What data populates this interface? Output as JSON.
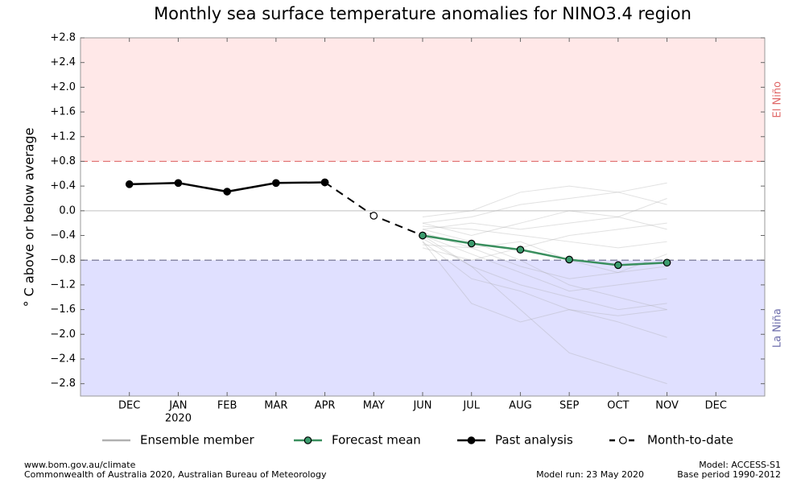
{
  "chart_data": {
    "type": "line",
    "title": "Monthly sea surface temperature anomalies for NINO3.4 region",
    "y_label": "° C above or below average",
    "categories": [
      "DEC",
      "JAN",
      "FEB",
      "MAR",
      "APR",
      "MAY",
      "JUN",
      "JUL",
      "AUG",
      "SEP",
      "OCT",
      "NOV",
      "DEC"
    ],
    "x_year": "2020",
    "ylim": [
      -3.0,
      2.8
    ],
    "yticks": [
      {
        "value": 2.8,
        "label": "+2.8"
      },
      {
        "value": 2.4,
        "label": "+2.4"
      },
      {
        "value": 2.0,
        "label": "+2.0"
      },
      {
        "value": 1.6,
        "label": "+1.6"
      },
      {
        "value": 1.2,
        "label": "+1.2"
      },
      {
        "value": 0.8,
        "label": "+0.8"
      },
      {
        "value": 0.4,
        "label": "+0.4"
      },
      {
        "value": 0,
        "label": "0.0"
      },
      {
        "value": -0.4,
        "label": "−0.4"
      },
      {
        "value": -0.8,
        "label": "−0.8"
      },
      {
        "value": -1.2,
        "label": "−1.2"
      },
      {
        "value": -1.6,
        "label": "−1.6"
      },
      {
        "value": -2.0,
        "label": "−2.0"
      },
      {
        "value": -2.4,
        "label": "−2.4"
      },
      {
        "value": -2.8,
        "label": "−2.8"
      }
    ],
    "zero_line": 0,
    "thresholds": [
      {
        "label": "El Niño",
        "value": 0.8,
        "side": "above",
        "fill": "#ffe8e8",
        "line_color": "#e07070",
        "text_color": "#e06868"
      },
      {
        "label": "La Niña",
        "value": -0.8,
        "side": "below",
        "fill": "#e0e0ff",
        "line_color": "#6a6a8a",
        "text_color": "#6a6aaa"
      }
    ],
    "ensemble": {
      "name": "Ensemble member",
      "color": "#a8a8a8",
      "members": [
        [
          null,
          null,
          null,
          null,
          null,
          null,
          -0.2,
          -0.1,
          0.1,
          0.2,
          0.3,
          0.45,
          null
        ],
        [
          null,
          null,
          null,
          null,
          null,
          null,
          -0.3,
          -0.5,
          -0.8,
          -1.2,
          -1.4,
          -1.6,
          null
        ],
        [
          null,
          null,
          null,
          null,
          null,
          null,
          -0.5,
          -1.5,
          -1.8,
          -1.6,
          -1.7,
          -1.6,
          null
        ],
        [
          null,
          null,
          null,
          null,
          null,
          null,
          -0.4,
          -0.9,
          -1.6,
          -2.3,
          -2.55,
          -2.8,
          null
        ],
        [
          null,
          null,
          null,
          null,
          null,
          null,
          -0.1,
          0.0,
          0.3,
          0.4,
          0.3,
          0.1,
          null
        ],
        [
          null,
          null,
          null,
          null,
          null,
          null,
          -0.35,
          -0.6,
          -0.9,
          -1.1,
          -1.0,
          -0.7,
          null
        ],
        [
          null,
          null,
          null,
          null,
          null,
          null,
          -0.6,
          -0.8,
          -0.6,
          -0.4,
          -0.3,
          -0.2,
          null
        ],
        [
          null,
          null,
          null,
          null,
          null,
          null,
          -0.45,
          -0.9,
          -1.2,
          -1.4,
          -1.6,
          -1.5,
          null
        ],
        [
          null,
          null,
          null,
          null,
          null,
          null,
          -0.25,
          -0.3,
          -0.4,
          -0.5,
          -0.6,
          -0.5,
          null
        ],
        [
          null,
          null,
          null,
          null,
          null,
          null,
          -0.5,
          -1.1,
          -1.3,
          -1.6,
          -1.8,
          -2.05,
          null
        ],
        [
          null,
          null,
          null,
          null,
          null,
          null,
          -0.3,
          -0.2,
          -0.3,
          -0.2,
          -0.1,
          0.2,
          null
        ],
        [
          null,
          null,
          null,
          null,
          null,
          null,
          -0.4,
          -0.7,
          -1.0,
          -1.3,
          -1.2,
          -1.1,
          null
        ],
        [
          null,
          null,
          null,
          null,
          null,
          null,
          -0.55,
          -0.6,
          -0.5,
          -0.8,
          -1.0,
          -0.9,
          null
        ],
        [
          null,
          null,
          null,
          null,
          null,
          null,
          -0.2,
          -0.4,
          -0.2,
          0.0,
          -0.1,
          -0.3,
          null
        ]
      ]
    },
    "series": [
      {
        "name": "Month-to-date",
        "color": "#000000",
        "dashed": true,
        "marker_fill": "#ffffff",
        "values": [
          null,
          null,
          null,
          null,
          0.46,
          -0.08,
          -0.4,
          null,
          null,
          null,
          null,
          null,
          null
        ]
      },
      {
        "name": "Forecast mean",
        "color": "#3a8f5e",
        "dashed": false,
        "marker_fill": "#3c9c6e",
        "values": [
          null,
          null,
          null,
          null,
          null,
          null,
          -0.4,
          -0.53,
          -0.63,
          -0.79,
          -0.88,
          -0.84,
          null
        ]
      },
      {
        "name": "Past analysis",
        "color": "#000000",
        "dashed": false,
        "marker_fill": "#000000",
        "values": [
          0.43,
          0.45,
          0.31,
          0.45,
          0.46,
          null,
          null,
          null,
          null,
          null,
          null,
          null,
          null
        ]
      }
    ],
    "legend_order": [
      "ensemble",
      "series.1",
      "series.2",
      "series.0"
    ],
    "footer": {
      "left": [
        "www.bom.gov.au/climate",
        "Commonwealth of Australia 2020, Australian Bureau of Meteorology"
      ],
      "center": "Model run: 23 May 2020",
      "right": [
        "Model: ACCESS-S1",
        "Base period 1990-2012"
      ]
    }
  }
}
